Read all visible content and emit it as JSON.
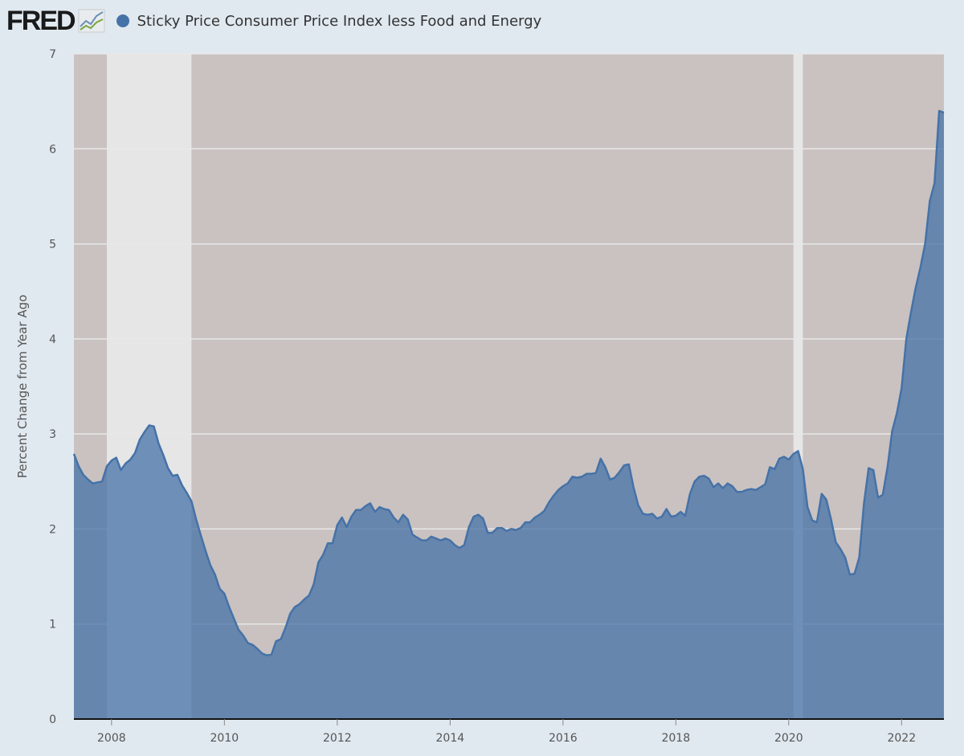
{
  "header": {
    "logo": "FRED",
    "series_name": "Sticky Price Consumer Price Index less Food and Energy"
  },
  "colors": {
    "page_bg": "#e1e9f0",
    "plot_bg": "#c9c2c1",
    "recession": "#e6e6e6",
    "series": "#4572a7",
    "grid": "#e8e8e8"
  },
  "chart_data": {
    "type": "area",
    "title": "",
    "ylabel": "Percent Change from Year Ago",
    "xlabel": "",
    "ylim": [
      0,
      7
    ],
    "xlim": [
      "2007-05",
      "2022-10"
    ],
    "yticks": [
      "0",
      "1",
      "2",
      "3",
      "4",
      "5",
      "6",
      "7"
    ],
    "xticks": [
      "2008",
      "2010",
      "2012",
      "2014",
      "2016",
      "2018",
      "2020",
      "2022"
    ],
    "grid": true,
    "legend": "top-left",
    "recessions": [
      [
        "2007-12",
        "2009-06"
      ],
      [
        "2020-02",
        "2020-04"
      ]
    ],
    "series": [
      {
        "name": "Sticky Price Consumer Price Index less Food and Energy",
        "points": [
          [
            "2007-05",
            2.79
          ],
          [
            "2007-06",
            2.66
          ],
          [
            "2007-07",
            2.57
          ],
          [
            "2007-08",
            2.52
          ],
          [
            "2007-09",
            2.48
          ],
          [
            "2007-10",
            2.49
          ],
          [
            "2007-11",
            2.5
          ],
          [
            "2007-12",
            2.66
          ],
          [
            "2008-01",
            2.72
          ],
          [
            "2008-02",
            2.75
          ],
          [
            "2008-03",
            2.62
          ],
          [
            "2008-04",
            2.69
          ],
          [
            "2008-05",
            2.73
          ],
          [
            "2008-06",
            2.8
          ],
          [
            "2008-07",
            2.94
          ],
          [
            "2008-08",
            3.02
          ],
          [
            "2008-09",
            3.09
          ],
          [
            "2008-10",
            3.08
          ],
          [
            "2008-11",
            2.9
          ],
          [
            "2008-12",
            2.78
          ],
          [
            "2009-01",
            2.64
          ],
          [
            "2009-02",
            2.56
          ],
          [
            "2009-03",
            2.57
          ],
          [
            "2009-04",
            2.46
          ],
          [
            "2009-05",
            2.38
          ],
          [
            "2009-06",
            2.29
          ],
          [
            "2009-07",
            2.1
          ],
          [
            "2009-08",
            1.93
          ],
          [
            "2009-09",
            1.77
          ],
          [
            "2009-10",
            1.62
          ],
          [
            "2009-11",
            1.52
          ],
          [
            "2009-12",
            1.37
          ],
          [
            "2010-01",
            1.32
          ],
          [
            "2010-02",
            1.18
          ],
          [
            "2010-03",
            1.06
          ],
          [
            "2010-04",
            0.94
          ],
          [
            "2010-05",
            0.88
          ],
          [
            "2010-06",
            0.8
          ],
          [
            "2010-07",
            0.78
          ],
          [
            "2010-08",
            0.74
          ],
          [
            "2010-09",
            0.69
          ],
          [
            "2010-10",
            0.67
          ],
          [
            "2010-11",
            0.68
          ],
          [
            "2010-12",
            0.82
          ],
          [
            "2011-01",
            0.84
          ],
          [
            "2011-02",
            0.96
          ],
          [
            "2011-03",
            1.11
          ],
          [
            "2011-04",
            1.18
          ],
          [
            "2011-05",
            1.21
          ],
          [
            "2011-06",
            1.26
          ],
          [
            "2011-07",
            1.3
          ],
          [
            "2011-08",
            1.42
          ],
          [
            "2011-09",
            1.65
          ],
          [
            "2011-10",
            1.73
          ],
          [
            "2011-11",
            1.85
          ],
          [
            "2011-12",
            1.85
          ],
          [
            "2012-01",
            2.04
          ],
          [
            "2012-02",
            2.12
          ],
          [
            "2012-03",
            2.02
          ],
          [
            "2012-04",
            2.13
          ],
          [
            "2012-05",
            2.2
          ],
          [
            "2012-06",
            2.2
          ],
          [
            "2012-07",
            2.24
          ],
          [
            "2012-08",
            2.27
          ],
          [
            "2012-09",
            2.18
          ],
          [
            "2012-10",
            2.23
          ],
          [
            "2012-11",
            2.21
          ],
          [
            "2012-12",
            2.2
          ],
          [
            "2013-01",
            2.12
          ],
          [
            "2013-02",
            2.07
          ],
          [
            "2013-03",
            2.15
          ],
          [
            "2013-04",
            2.1
          ],
          [
            "2013-05",
            1.94
          ],
          [
            "2013-06",
            1.91
          ],
          [
            "2013-07",
            1.88
          ],
          [
            "2013-08",
            1.88
          ],
          [
            "2013-09",
            1.92
          ],
          [
            "2013-10",
            1.9
          ],
          [
            "2013-11",
            1.88
          ],
          [
            "2013-12",
            1.9
          ],
          [
            "2014-01",
            1.88
          ],
          [
            "2014-02",
            1.83
          ],
          [
            "2014-03",
            1.8
          ],
          [
            "2014-04",
            1.83
          ],
          [
            "2014-05",
            2.02
          ],
          [
            "2014-06",
            2.13
          ],
          [
            "2014-07",
            2.15
          ],
          [
            "2014-08",
            2.11
          ],
          [
            "2014-09",
            1.96
          ],
          [
            "2014-10",
            1.96
          ],
          [
            "2014-11",
            2.01
          ],
          [
            "2014-12",
            2.01
          ],
          [
            "2015-01",
            1.98
          ],
          [
            "2015-02",
            2.0
          ],
          [
            "2015-03",
            1.99
          ],
          [
            "2015-04",
            2.01
          ],
          [
            "2015-05",
            2.07
          ],
          [
            "2015-06",
            2.07
          ],
          [
            "2015-07",
            2.12
          ],
          [
            "2015-08",
            2.15
          ],
          [
            "2015-09",
            2.19
          ],
          [
            "2015-10",
            2.28
          ],
          [
            "2015-11",
            2.35
          ],
          [
            "2015-12",
            2.41
          ],
          [
            "2016-01",
            2.45
          ],
          [
            "2016-02",
            2.48
          ],
          [
            "2016-03",
            2.55
          ],
          [
            "2016-04",
            2.54
          ],
          [
            "2016-05",
            2.55
          ],
          [
            "2016-06",
            2.58
          ],
          [
            "2016-07",
            2.58
          ],
          [
            "2016-08",
            2.59
          ],
          [
            "2016-09",
            2.74
          ],
          [
            "2016-10",
            2.65
          ],
          [
            "2016-11",
            2.52
          ],
          [
            "2016-12",
            2.54
          ],
          [
            "2017-01",
            2.6
          ],
          [
            "2017-02",
            2.67
          ],
          [
            "2017-03",
            2.68
          ],
          [
            "2017-04",
            2.44
          ],
          [
            "2017-05",
            2.25
          ],
          [
            "2017-06",
            2.16
          ],
          [
            "2017-07",
            2.15
          ],
          [
            "2017-08",
            2.16
          ],
          [
            "2017-09",
            2.11
          ],
          [
            "2017-10",
            2.13
          ],
          [
            "2017-11",
            2.21
          ],
          [
            "2017-12",
            2.13
          ],
          [
            "2018-01",
            2.14
          ],
          [
            "2018-02",
            2.18
          ],
          [
            "2018-03",
            2.14
          ],
          [
            "2018-04",
            2.37
          ],
          [
            "2018-05",
            2.5
          ],
          [
            "2018-06",
            2.55
          ],
          [
            "2018-07",
            2.56
          ],
          [
            "2018-08",
            2.53
          ],
          [
            "2018-09",
            2.44
          ],
          [
            "2018-10",
            2.48
          ],
          [
            "2018-11",
            2.43
          ],
          [
            "2018-12",
            2.48
          ],
          [
            "2019-01",
            2.45
          ],
          [
            "2019-02",
            2.39
          ],
          [
            "2019-03",
            2.39
          ],
          [
            "2019-04",
            2.41
          ],
          [
            "2019-05",
            2.42
          ],
          [
            "2019-06",
            2.41
          ],
          [
            "2019-07",
            2.44
          ],
          [
            "2019-08",
            2.47
          ],
          [
            "2019-09",
            2.65
          ],
          [
            "2019-10",
            2.63
          ],
          [
            "2019-11",
            2.74
          ],
          [
            "2019-12",
            2.76
          ],
          [
            "2020-01",
            2.73
          ],
          [
            "2020-02",
            2.79
          ],
          [
            "2020-03",
            2.82
          ],
          [
            "2020-04",
            2.63
          ],
          [
            "2020-05",
            2.23
          ],
          [
            "2020-06",
            2.09
          ],
          [
            "2020-07",
            2.07
          ],
          [
            "2020-08",
            2.37
          ],
          [
            "2020-09",
            2.31
          ],
          [
            "2020-10",
            2.1
          ],
          [
            "2020-11",
            1.86
          ],
          [
            "2020-12",
            1.79
          ],
          [
            "2021-01",
            1.7
          ],
          [
            "2021-02",
            1.52
          ],
          [
            "2021-03",
            1.53
          ],
          [
            "2021-04",
            1.7
          ],
          [
            "2021-05",
            2.27
          ],
          [
            "2021-06",
            2.64
          ],
          [
            "2021-07",
            2.62
          ],
          [
            "2021-08",
            2.33
          ],
          [
            "2021-09",
            2.36
          ],
          [
            "2021-10",
            2.65
          ],
          [
            "2021-11",
            3.03
          ],
          [
            "2021-12",
            3.22
          ],
          [
            "2022-01",
            3.48
          ],
          [
            "2022-02",
            4.0
          ],
          [
            "2022-03",
            4.28
          ],
          [
            "2022-04",
            4.54
          ],
          [
            "2022-05",
            4.75
          ],
          [
            "2022-06",
            5.0
          ],
          [
            "2022-07",
            5.45
          ],
          [
            "2022-08",
            5.64
          ],
          [
            "2022-09",
            6.4
          ],
          [
            "2022-10",
            6.38
          ]
        ]
      }
    ]
  }
}
